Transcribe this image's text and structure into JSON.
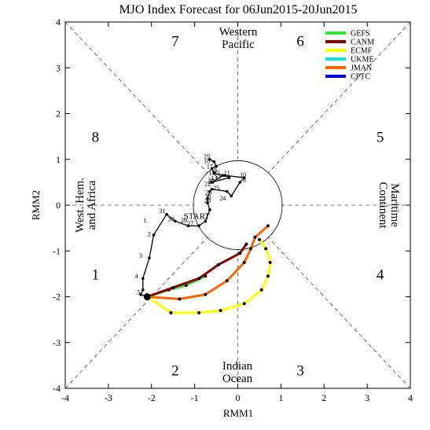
{
  "chart_data": {
    "type": "scatter",
    "title": "MJO Index Forecast for 06Jun2015-20Jun2015",
    "xlabel": "RMM1",
    "ylabel": "RMM2",
    "xlim": [
      -4,
      4
    ],
    "ylim": [
      -4,
      4
    ],
    "x_ticks": [
      "-4",
      "-3",
      "-2",
      "-1",
      "0",
      "1",
      "2",
      "3",
      "4"
    ],
    "y_ticks": [
      "-4",
      "-3",
      "-2",
      "-1",
      "0",
      "1",
      "2",
      "3",
      "4"
    ],
    "grid": false,
    "legend_position": "top-right",
    "phase_numbers": [
      {
        "label": "1",
        "x": -3.3,
        "y": -1.5
      },
      {
        "label": "2",
        "x": -1.45,
        "y": -3.6
      },
      {
        "label": "3",
        "x": 1.45,
        "y": -3.6
      },
      {
        "label": "4",
        "x": 3.3,
        "y": -1.5
      },
      {
        "label": "5",
        "x": 3.3,
        "y": 1.5
      },
      {
        "label": "6",
        "x": 1.45,
        "y": 3.6
      },
      {
        "label": "7",
        "x": -1.45,
        "y": 3.6
      },
      {
        "label": "8",
        "x": -3.3,
        "y": 1.5
      }
    ],
    "regions": {
      "top": [
        "Western",
        "Pacific"
      ],
      "bottom": [
        "Indian",
        "Ocean"
      ],
      "left": [
        "West. Hem.",
        "and Africa"
      ],
      "right": [
        "Maritime",
        "Continent"
      ]
    },
    "observed": {
      "name": "",
      "color": "#000000",
      "x": [
        -0.65,
        -0.55,
        -0.5,
        -0.6,
        -0.55,
        -0.35,
        -0.6,
        -0.2,
        -0.3,
        0.15,
        0.05,
        -0.15,
        -0.25,
        -0.6,
        -0.65,
        -0.7,
        -0.7,
        -0.65,
        -0.75,
        -0.9,
        -1.15,
        -1.45,
        -1.65,
        -1.95,
        -2.05,
        -2.2,
        -2.2,
        -2.25,
        -2.1
      ],
      "y": [
        1.0,
        0.95,
        0.85,
        0.8,
        0.7,
        0.65,
        0.5,
        0.6,
        0.65,
        0.6,
        0.5,
        0.2,
        0.3,
        0.35,
        0.3,
        0.15,
        0.05,
        -0.1,
        -0.35,
        -0.45,
        -0.45,
        -0.35,
        -0.2,
        -0.65,
        -1.15,
        -1.6,
        -1.85,
        -1.95,
        -2.0
      ],
      "labels": [
        {
          "text": "19",
          "x": -0.72,
          "y": 1.02
        },
        {
          "text": "18",
          "x": -0.72,
          "y": 0.92
        },
        {
          "text": "17",
          "x": -0.65,
          "y": 0.8
        },
        {
          "text": "16",
          "x": -0.55,
          "y": 0.72
        },
        {
          "text": "15",
          "x": -0.48,
          "y": 0.65
        },
        {
          "text": "14",
          "x": -0.6,
          "y": 0.65
        },
        {
          "text": "13",
          "x": -0.55,
          "y": 0.55
        },
        {
          "text": "12",
          "x": -0.45,
          "y": 0.55
        },
        {
          "text": "11",
          "x": -0.25,
          "y": 0.66
        },
        {
          "text": "10",
          "x": 0.12,
          "y": 0.62
        },
        {
          "text": "9",
          "x": 0.15,
          "y": 0.5
        },
        {
          "text": "20",
          "x": -0.62,
          "y": 0.5
        },
        {
          "text": "26",
          "x": -0.62,
          "y": 0.46
        },
        {
          "text": "25",
          "x": -0.5,
          "y": 0.33
        },
        {
          "text": "24",
          "x": -0.35,
          "y": 0.1
        },
        {
          "text": "22",
          "x": -0.7,
          "y": 0.42
        },
        {
          "text": "23",
          "x": -0.68,
          "y": 0.23
        },
        {
          "text": "21",
          "x": -0.68,
          "y": 0.13
        },
        {
          "text": "28",
          "x": -0.7,
          "y": 0.05
        },
        {
          "text": "27",
          "x": -1.1,
          "y": -0.45
        },
        {
          "text": "29",
          "x": -1.25,
          "y": -0.38
        },
        {
          "text": "30",
          "x": -1.55,
          "y": -0.35
        },
        {
          "text": "31",
          "x": -1.75,
          "y": -0.17
        },
        {
          "text": "1",
          "x": -2.15,
          "y": -0.38
        },
        {
          "text": "2",
          "x": -2.05,
          "y": -0.68
        },
        {
          "text": "3",
          "x": -2.25,
          "y": -1.15
        },
        {
          "text": "4",
          "x": -2.35,
          "y": -1.6
        },
        {
          "text": "5",
          "x": -2.3,
          "y": -1.95
        },
        {
          "text": "START",
          "x": -0.95,
          "y": -0.3
        }
      ]
    },
    "series": [
      {
        "name": "GEFS",
        "color": "#33e633",
        "x": [
          -2.1,
          -1.6,
          -1.2,
          -0.75
        ],
        "y": [
          -2.0,
          -1.85,
          -1.75,
          -1.55
        ]
      },
      {
        "name": "CANM",
        "color": "#8b0000",
        "x": [
          -2.1,
          -1.5,
          -0.9,
          -0.45,
          0.05,
          0.2
        ],
        "y": [
          -2.0,
          -1.8,
          -1.6,
          -1.3,
          -1.05,
          -0.85
        ]
      },
      {
        "name": "ECMF",
        "color": "#ffff00",
        "x": [
          -2.1,
          -1.55,
          -0.9,
          -0.4,
          0.15,
          0.55,
          0.7,
          0.75,
          0.65,
          0.5
        ],
        "y": [
          -2.0,
          -2.35,
          -2.35,
          -2.3,
          -2.15,
          -1.85,
          -1.55,
          -1.25,
          -0.95,
          -0.75
        ]
      },
      {
        "name": "UKME",
        "color": "#00e5e5",
        "x": [],
        "y": []
      },
      {
        "name": "JMAN",
        "color": "#ff6600",
        "x": [
          -2.1,
          -1.35,
          -0.75,
          -0.25,
          0.15,
          0.3,
          0.4,
          0.7
        ],
        "y": [
          -2.0,
          -2.05,
          -1.95,
          -1.65,
          -1.25,
          -0.95,
          -0.7,
          -0.45
        ]
      },
      {
        "name": "CPTC",
        "color": "#0000ff",
        "x": [],
        "y": []
      }
    ]
  }
}
